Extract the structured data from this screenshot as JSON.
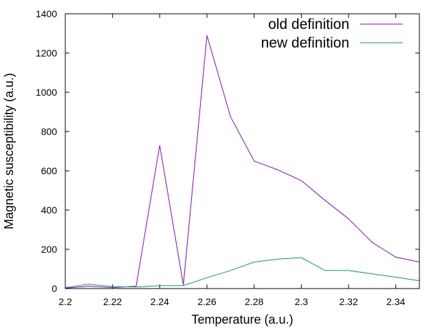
{
  "chart_data": {
    "type": "line",
    "title": "",
    "xlabel": "Temperature (a.u.)",
    "ylabel": "Magnetic susceptibility (a.u.)",
    "xlim": [
      2.2,
      2.35
    ],
    "ylim": [
      0,
      1400
    ],
    "x_ticks": [
      2.2,
      2.22,
      2.24,
      2.26,
      2.28,
      2.3,
      2.32,
      2.34
    ],
    "x_tick_labels": [
      "2.2",
      "2.22",
      "2.24",
      "2.26",
      "2.28",
      "2.3",
      "2.32",
      "2.34"
    ],
    "y_ticks": [
      0,
      200,
      400,
      600,
      800,
      1000,
      1200,
      1400
    ],
    "y_tick_labels": [
      "0",
      "200",
      "400",
      "600",
      "800",
      "1000",
      "1200",
      "1400"
    ],
    "grid": false,
    "legend_position": "top-right",
    "x": [
      2.2,
      2.21,
      2.22,
      2.23,
      2.24,
      2.25,
      2.26,
      2.27,
      2.28,
      2.29,
      2.3,
      2.31,
      2.32,
      2.33,
      2.34,
      2.35
    ],
    "series": [
      {
        "name": "old definition",
        "color": "#9400d3",
        "values": [
          2,
          12,
          5,
          12,
          730,
          18,
          1290,
          875,
          650,
          605,
          550,
          450,
          355,
          235,
          160,
          135
        ]
      },
      {
        "name": "new definition",
        "color": "#009e73",
        "values": [
          5,
          22,
          10,
          8,
          15,
          15,
          55,
          92,
          135,
          150,
          158,
          92,
          92,
          75,
          58,
          40
        ]
      }
    ]
  }
}
